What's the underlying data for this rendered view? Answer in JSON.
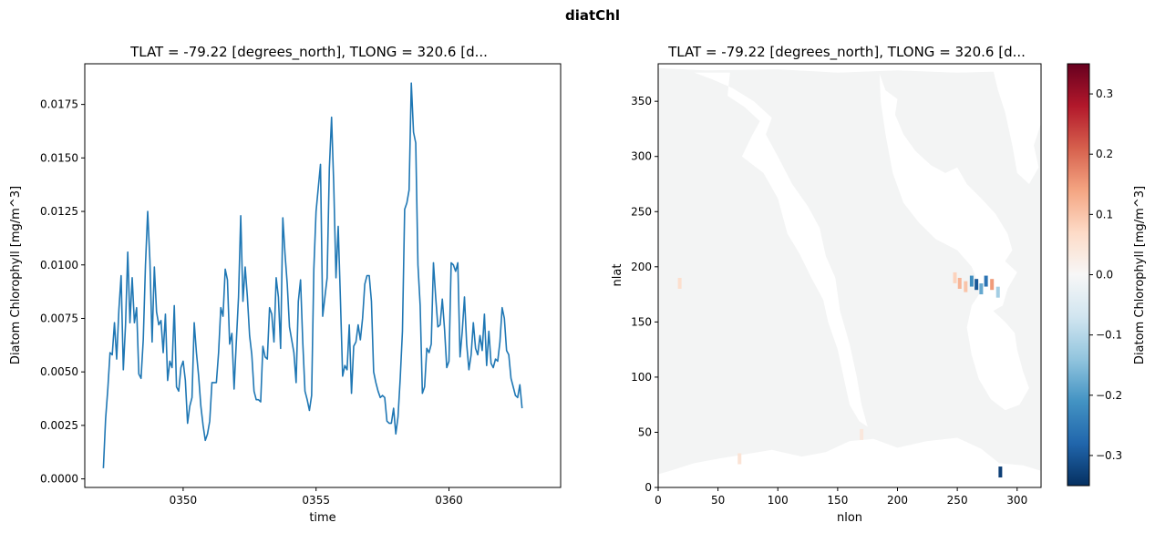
{
  "figure": {
    "suptitle": "diatChl"
  },
  "chart_data": [
    {
      "type": "line",
      "title": "TLAT = -79.22 [degrees_north], TLONG = 320.6 [d...",
      "xlabel": "time",
      "ylabel": "Diatom Chlorophyll [mg/m^3]",
      "xlim": [
        346.3,
        364.2
      ],
      "ylim": [
        -0.0004,
        0.0194
      ],
      "xticks": [
        350,
        355,
        360
      ],
      "xtick_labels": [
        "0350",
        "0355",
        "0360"
      ],
      "yticks": [
        0.0,
        0.0025,
        0.005,
        0.0075,
        0.01,
        0.0125,
        0.015,
        0.0175
      ],
      "ytick_labels": [
        "0.0000",
        "0.0025",
        "0.0050",
        "0.0075",
        "0.0100",
        "0.0125",
        "0.0150",
        "0.0175"
      ],
      "grid": false,
      "series": [
        {
          "color": "#1f77b4",
          "x_start": 347.0,
          "x_step": 0.08333,
          "values": [
            0.0005,
            0.0028,
            0.0042,
            0.0059,
            0.0058,
            0.0073,
            0.0056,
            0.0079,
            0.0095,
            0.0051,
            0.0072,
            0.0106,
            0.0073,
            0.0094,
            0.0073,
            0.008,
            0.0049,
            0.0047,
            0.0065,
            0.01,
            0.0125,
            0.0102,
            0.0064,
            0.0099,
            0.0078,
            0.0072,
            0.0074,
            0.0059,
            0.0077,
            0.0046,
            0.0055,
            0.0052,
            0.0081,
            0.0043,
            0.0041,
            0.0052,
            0.0055,
            0.0046,
            0.0026,
            0.0034,
            0.0038,
            0.0073,
            0.0059,
            0.0048,
            0.0034,
            0.0025,
            0.0018,
            0.0021,
            0.0027,
            0.0045,
            0.0045,
            0.0045,
            0.0059,
            0.008,
            0.0076,
            0.0098,
            0.0093,
            0.0063,
            0.0068,
            0.0042,
            0.0064,
            0.0085,
            0.0123,
            0.0083,
            0.0099,
            0.0085,
            0.0067,
            0.0058,
            0.0041,
            0.0037,
            0.0037,
            0.0036,
            0.0062,
            0.0057,
            0.0056,
            0.008,
            0.0077,
            0.0064,
            0.0094,
            0.0085,
            0.0061,
            0.0122,
            0.0105,
            0.0091,
            0.0071,
            0.0065,
            0.0059,
            0.0045,
            0.0083,
            0.0093,
            0.0064,
            0.0041,
            0.0037,
            0.0032,
            0.0039,
            0.0098,
            0.0125,
            0.0136,
            0.0147,
            0.0076,
            0.0085,
            0.0094,
            0.0145,
            0.0169,
            0.0137,
            0.0094,
            0.0118,
            0.0084,
            0.0048,
            0.0053,
            0.0051,
            0.0072,
            0.004,
            0.0062,
            0.0064,
            0.0072,
            0.0065,
            0.0075,
            0.0091,
            0.0095,
            0.0095,
            0.0083,
            0.005,
            0.0045,
            0.0041,
            0.0038,
            0.0039,
            0.0038,
            0.0027,
            0.0026,
            0.0026,
            0.0033,
            0.0021,
            0.0029,
            0.0047,
            0.0069,
            0.0126,
            0.0129,
            0.0135,
            0.0185,
            0.0162,
            0.0157,
            0.01,
            0.0081,
            0.004,
            0.0043,
            0.0061,
            0.0059,
            0.0063,
            0.0101,
            0.0085,
            0.0071,
            0.0072,
            0.0084,
            0.007,
            0.0052,
            0.0055,
            0.0101,
            0.01,
            0.0097,
            0.0101,
            0.0057,
            0.0069,
            0.0085,
            0.0063,
            0.0051,
            0.0058,
            0.0073,
            0.0061,
            0.0058,
            0.0067,
            0.006,
            0.0077,
            0.0053,
            0.0069,
            0.0054,
            0.0052,
            0.0056,
            0.0055,
            0.0064,
            0.008,
            0.0075,
            0.006,
            0.0058,
            0.0047,
            0.0043,
            0.0039,
            0.0038,
            0.0044,
            0.0033
          ]
        }
      ]
    },
    {
      "type": "heatmap",
      "title": "TLAT = -79.22 [degrees_north], TLONG = 320.6 [d...",
      "xlabel": "nlon",
      "ylabel": "nlat",
      "xlim": [
        0,
        320
      ],
      "ylim": [
        0,
        384
      ],
      "xticks": [
        0,
        50,
        100,
        150,
        200,
        250,
        300
      ],
      "xtick_labels": [
        "0",
        "50",
        "100",
        "150",
        "200",
        "250",
        "300"
      ],
      "yticks": [
        0,
        50,
        100,
        150,
        200,
        250,
        300,
        350
      ],
      "ytick_labels": [
        "0",
        "50",
        "100",
        "150",
        "200",
        "250",
        "300",
        "350"
      ],
      "colormap": "RdBu_r",
      "colorbar": {
        "label": "Diatom Chlorophyll [mg/m^3]",
        "vmin": -0.35,
        "vmax": 0.35,
        "ticks": [
          -0.3,
          -0.2,
          -0.1,
          0.0,
          0.1,
          0.2,
          0.3
        ],
        "tick_labels": [
          "−0.3",
          "−0.2",
          "−0.1",
          "0.0",
          "0.1",
          "0.2",
          "0.3"
        ],
        "colors": [
          "#053061",
          "#2166ac",
          "#4393c3",
          "#92c5de",
          "#d1e5f0",
          "#f7f7f7",
          "#fddbc7",
          "#f4a582",
          "#d6604d",
          "#b2182b",
          "#67001f"
        ]
      },
      "ocean_color": "#f3f4f4",
      "land_color": "#ffffff",
      "anomalies": [
        {
          "nlon": 252,
          "nlat": 185,
          "value": 0.12
        },
        {
          "nlon": 257,
          "nlat": 182,
          "value": 0.1
        },
        {
          "nlon": 262,
          "nlat": 187,
          "value": -0.22
        },
        {
          "nlon": 266,
          "nlat": 184,
          "value": -0.3
        },
        {
          "nlon": 270,
          "nlat": 180,
          "value": -0.18
        },
        {
          "nlon": 274,
          "nlat": 187,
          "value": -0.26
        },
        {
          "nlon": 279,
          "nlat": 184,
          "value": 0.15
        },
        {
          "nlon": 284,
          "nlat": 177,
          "value": -0.12
        },
        {
          "nlon": 248,
          "nlat": 190,
          "value": 0.08
        },
        {
          "nlon": 286,
          "nlat": 14,
          "value": -0.33
        },
        {
          "nlon": 18,
          "nlat": 185,
          "value": 0.06
        },
        {
          "nlon": 68,
          "nlat": 26,
          "value": 0.05
        },
        {
          "nlon": 170,
          "nlat": 48,
          "value": 0.04
        }
      ]
    }
  ]
}
